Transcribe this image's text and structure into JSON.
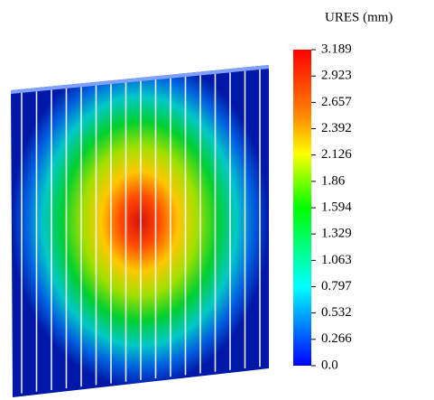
{
  "chart_data": {
    "type": "contour",
    "title": "URES (mm)",
    "clim": [
      0,
      3.189
    ],
    "cticks": [
      {
        "value": 0,
        "label": "0.0"
      },
      0.266,
      0.532,
      0.797,
      1.063,
      1.329,
      1.594,
      1.86,
      2.126,
      2.392,
      2.657,
      2.923,
      3.189
    ]
  }
}
